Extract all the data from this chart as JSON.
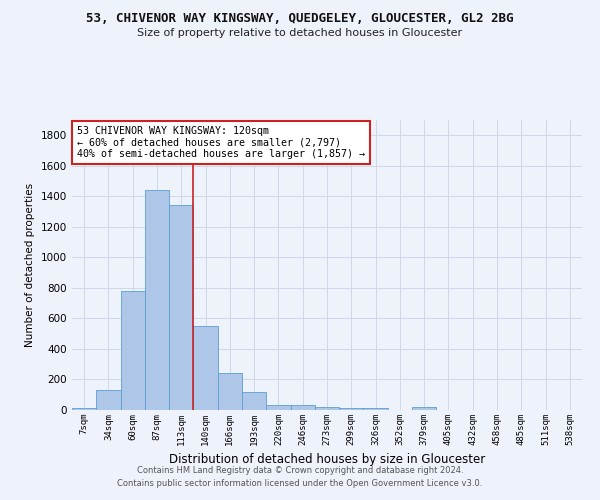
{
  "title1": "53, CHIVENOR WAY KINGSWAY, QUEDGELEY, GLOUCESTER, GL2 2BG",
  "title2": "Size of property relative to detached houses in Gloucester",
  "xlabel": "Distribution of detached houses by size in Gloucester",
  "ylabel": "Number of detached properties",
  "categories": [
    "7sqm",
    "34sqm",
    "60sqm",
    "87sqm",
    "113sqm",
    "140sqm",
    "166sqm",
    "193sqm",
    "220sqm",
    "246sqm",
    "273sqm",
    "299sqm",
    "326sqm",
    "352sqm",
    "379sqm",
    "405sqm",
    "432sqm",
    "458sqm",
    "485sqm",
    "511sqm",
    "538sqm"
  ],
  "values": [
    15,
    130,
    780,
    1440,
    1340,
    550,
    245,
    115,
    35,
    30,
    20,
    15,
    15,
    0,
    20,
    0,
    0,
    0,
    0,
    0,
    0
  ],
  "bar_color": "#aec6e8",
  "bar_edge_color": "#5a9fd4",
  "grid_color": "#d0d8e8",
  "background_color": "#eef2fa",
  "vline_x": 4.5,
  "vline_color": "#cc2222",
  "annotation_line1": "53 CHIVENOR WAY KINGSWAY: 120sqm",
  "annotation_line2": "← 60% of detached houses are smaller (2,797)",
  "annotation_line3": "40% of semi-detached houses are larger (1,857) →",
  "annotation_box_color": "#ffffff",
  "annotation_box_edge": "#cc2222",
  "footer": "Contains HM Land Registry data © Crown copyright and database right 2024.\nContains public sector information licensed under the Open Government Licence v3.0.",
  "ylim": [
    0,
    1900
  ],
  "yticks": [
    0,
    200,
    400,
    600,
    800,
    1000,
    1200,
    1400,
    1600,
    1800
  ]
}
